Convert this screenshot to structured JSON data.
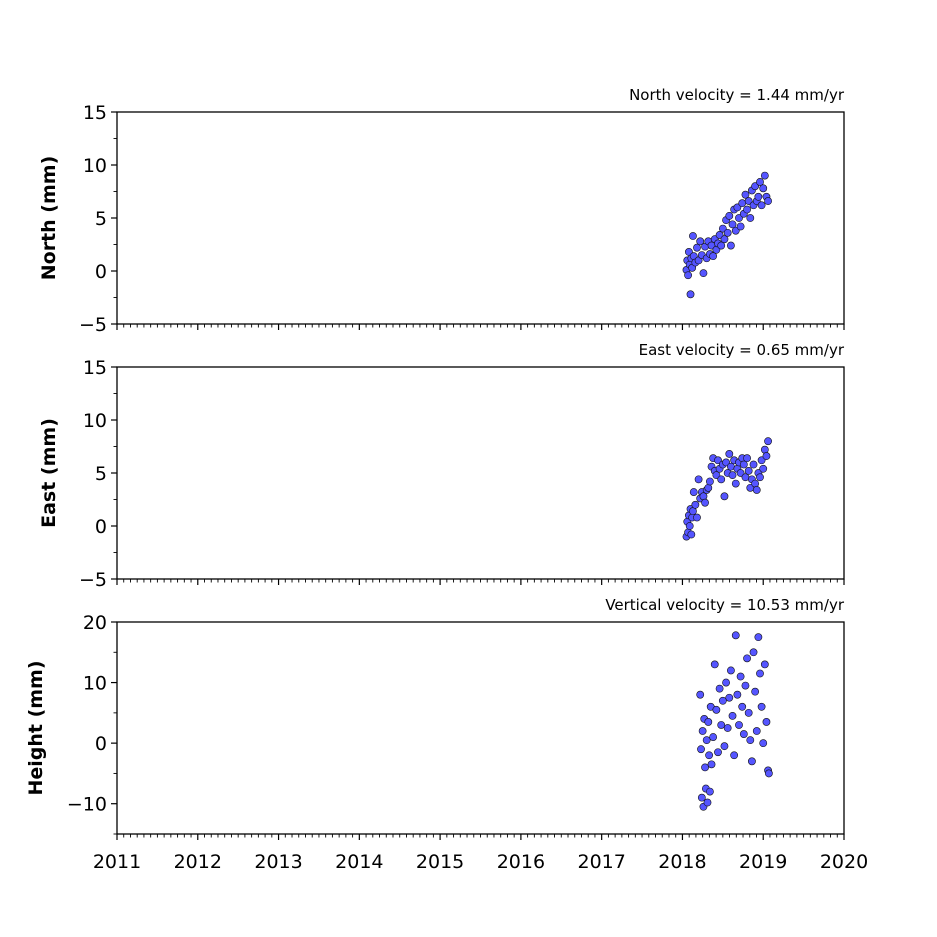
{
  "chart_data": [
    {
      "type": "scatter",
      "title": "North velocity = 1.44 mm/yr",
      "ylabel": "North (mm)",
      "xlabel": "",
      "xlim": [
        2011,
        2020
      ],
      "ylim": [
        -5,
        15
      ],
      "yticks": [
        -5,
        0,
        5,
        10,
        15
      ],
      "ytick_labels": [
        "−5",
        "0",
        "5",
        "10",
        "15"
      ],
      "xticks": [
        2011,
        2012,
        2013,
        2014,
        2015,
        2016,
        2017,
        2018,
        2019,
        2020
      ],
      "xtick_labels": [],
      "marker_color": "#5555ff",
      "marker_edge": "#111111",
      "grid": false,
      "series": [
        {
          "x": [
            2018.05,
            2018.06,
            2018.07,
            2018.08,
            2018.09,
            2018.1,
            2018.11,
            2018.12,
            2018.13,
            2018.14,
            2018.16,
            2018.18,
            2018.2,
            2018.22,
            2018.24,
            2018.26,
            2018.28,
            2018.3,
            2018.32,
            2018.34,
            2018.36,
            2018.38,
            2018.4,
            2018.42,
            2018.44,
            2018.46,
            2018.48,
            2018.5,
            2018.52,
            2018.54,
            2018.56,
            2018.58,
            2018.6,
            2018.62,
            2018.64,
            2018.66,
            2018.68,
            2018.7,
            2018.72,
            2018.74,
            2018.76,
            2018.78,
            2018.8,
            2018.82,
            2018.84,
            2018.86,
            2018.88,
            2018.9,
            2018.92,
            2018.94,
            2018.96,
            2018.98,
            2019.0,
            2019.02,
            2019.04,
            2019.06
          ],
          "y": [
            0.1,
            1.0,
            -0.4,
            1.8,
            0.6,
            -2.2,
            1.2,
            0.3,
            3.3,
            1.4,
            0.8,
            2.2,
            1.0,
            2.8,
            1.5,
            -0.2,
            2.3,
            1.2,
            2.8,
            1.6,
            2.4,
            1.4,
            3.0,
            2.0,
            2.6,
            3.4,
            2.4,
            4.0,
            3.0,
            4.8,
            3.6,
            5.2,
            2.4,
            4.4,
            5.8,
            3.8,
            6.0,
            5.0,
            4.2,
            6.4,
            5.4,
            7.2,
            5.8,
            6.6,
            5.0,
            7.6,
            6.2,
            8.0,
            6.6,
            7.0,
            8.4,
            6.2,
            7.8,
            9.0,
            7.0,
            6.6
          ]
        }
      ]
    },
    {
      "type": "scatter",
      "title": "East velocity = 0.65 mm/yr",
      "ylabel": "East (mm)",
      "xlabel": "",
      "xlim": [
        2011,
        2020
      ],
      "ylim": [
        -5,
        15
      ],
      "yticks": [
        -5,
        0,
        5,
        10,
        15
      ],
      "ytick_labels": [
        "−5",
        "0",
        "5",
        "10",
        "15"
      ],
      "xticks": [
        2011,
        2012,
        2013,
        2014,
        2015,
        2016,
        2017,
        2018,
        2019,
        2020
      ],
      "xtick_labels": [],
      "marker_color": "#5555ff",
      "marker_edge": "#111111",
      "grid": false,
      "series": [
        {
          "x": [
            2018.05,
            2018.06,
            2018.07,
            2018.08,
            2018.09,
            2018.1,
            2018.11,
            2018.12,
            2018.13,
            2018.14,
            2018.16,
            2018.18,
            2018.2,
            2018.22,
            2018.24,
            2018.26,
            2018.28,
            2018.3,
            2018.32,
            2018.34,
            2018.36,
            2018.38,
            2018.4,
            2018.42,
            2018.44,
            2018.46,
            2018.48,
            2018.5,
            2018.52,
            2018.54,
            2018.56,
            2018.58,
            2018.6,
            2018.62,
            2018.64,
            2018.66,
            2018.68,
            2018.7,
            2018.72,
            2018.74,
            2018.76,
            2018.78,
            2018.8,
            2018.82,
            2018.84,
            2018.86,
            2018.88,
            2018.9,
            2018.92,
            2018.94,
            2018.96,
            2018.98,
            2019.0,
            2019.02,
            2019.04,
            2019.06
          ],
          "y": [
            -1.0,
            0.4,
            -0.6,
            1.0,
            0.0,
            1.6,
            -0.8,
            0.8,
            1.4,
            3.2,
            2.0,
            0.8,
            4.4,
            2.6,
            3.2,
            2.8,
            2.2,
            3.4,
            3.6,
            4.2,
            5.6,
            6.4,
            5.2,
            4.8,
            6.2,
            5.4,
            4.4,
            5.8,
            2.8,
            6.0,
            5.0,
            6.8,
            5.6,
            4.8,
            6.2,
            4.0,
            5.4,
            6.0,
            5.0,
            6.4,
            5.8,
            4.6,
            6.4,
            5.2,
            3.6,
            4.4,
            5.8,
            4.0,
            3.4,
            5.0,
            4.6,
            6.2,
            5.4,
            7.2,
            6.6,
            8.0
          ]
        }
      ]
    },
    {
      "type": "scatter",
      "title": "Vertical velocity = 10.53 mm/yr",
      "ylabel": "Height (mm)",
      "xlabel": "",
      "xlim": [
        2011,
        2020
      ],
      "ylim": [
        -15,
        20
      ],
      "yticks": [
        -10,
        0,
        10,
        20
      ],
      "ytick_labels": [
        "−10",
        "0",
        "10",
        "20"
      ],
      "xticks": [
        2011,
        2012,
        2013,
        2014,
        2015,
        2016,
        2017,
        2018,
        2019,
        2020
      ],
      "xtick_labels": [
        "2011",
        "2012",
        "2013",
        "2014",
        "2015",
        "2016",
        "2017",
        "2018",
        "2019",
        "2020"
      ],
      "marker_color": "#5555ff",
      "marker_edge": "#111111",
      "grid": false,
      "series": [
        {
          "x": [
            2018.22,
            2018.23,
            2018.24,
            2018.25,
            2018.26,
            2018.27,
            2018.28,
            2018.29,
            2018.3,
            2018.31,
            2018.32,
            2018.33,
            2018.34,
            2018.35,
            2018.36,
            2018.38,
            2018.4,
            2018.42,
            2018.44,
            2018.46,
            2018.48,
            2018.5,
            2018.52,
            2018.54,
            2018.56,
            2018.58,
            2018.6,
            2018.62,
            2018.64,
            2018.66,
            2018.68,
            2018.7,
            2018.72,
            2018.74,
            2018.76,
            2018.78,
            2018.8,
            2018.82,
            2018.84,
            2018.86,
            2018.88,
            2018.9,
            2018.92,
            2018.94,
            2018.96,
            2018.98,
            2019.0,
            2019.02,
            2019.04,
            2019.06,
            2019.07
          ],
          "y": [
            8.0,
            -1.0,
            -9.0,
            2.0,
            -10.5,
            4.0,
            -4.0,
            -7.5,
            0.5,
            -9.8,
            3.5,
            -2.0,
            -8.0,
            6.0,
            -3.5,
            1.0,
            13.0,
            5.5,
            -1.5,
            9.0,
            3.0,
            7.0,
            -0.5,
            10.0,
            2.5,
            7.5,
            12.0,
            4.5,
            -2.0,
            17.8,
            8.0,
            3.0,
            11.0,
            6.0,
            1.5,
            9.5,
            14.0,
            5.0,
            0.5,
            -3.0,
            15.0,
            8.5,
            2.0,
            17.5,
            11.5,
            6.0,
            0.0,
            13.0,
            3.5,
            -4.5,
            -5.0
          ]
        }
      ]
    }
  ]
}
